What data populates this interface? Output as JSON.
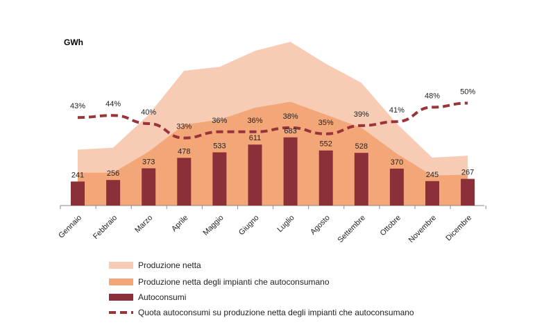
{
  "colors": {
    "produzione_netta": "#f8ccb4",
    "produzione_impianti": "#f3a677",
    "autoconsumi": "#8b3039",
    "quota": "#98343a",
    "axis": "#8a8a8a"
  },
  "chart_data": {
    "type": "bar",
    "unit_label": "GWh",
    "categories": [
      "Gennaio",
      "Febbraio",
      "Marzo",
      "Aprile",
      "Maggio",
      "Giugno",
      "Luglio",
      "Agosto",
      "Settembre",
      "Ottobre",
      "Novembre",
      "Dicembre"
    ],
    "ylim": [
      0,
      1600
    ],
    "y2lim": [
      0,
      80
    ],
    "grid": false,
    "legend_placement": "bottom",
    "series": [
      {
        "name": "Produzione netta",
        "type": "area",
        "values": [
          560,
          580,
          910,
          1350,
          1390,
          1550,
          1640,
          1420,
          1230,
          820,
          480,
          500
        ]
      },
      {
        "name": "Produzione netta degli impianti che autoconsumano",
        "type": "area",
        "values": [
          330,
          330,
          540,
          810,
          860,
          980,
          1040,
          910,
          780,
          520,
          300,
          310
        ]
      },
      {
        "name": "Autoconsumi",
        "type": "bar",
        "values": [
          241,
          256,
          373,
          478,
          533,
          611,
          683,
          552,
          528,
          370,
          245,
          267
        ],
        "labels": [
          "241",
          "256",
          "373",
          "478",
          "533",
          "611",
          "683",
          "552",
          "528",
          "370",
          "245",
          "267"
        ]
      },
      {
        "name": "Quota autoconsumi su produzione netta degli impianti che autoconsumano",
        "type": "line",
        "axis": "secondary",
        "values": [
          43,
          44,
          40,
          33,
          36,
          36,
          38,
          35,
          39,
          41,
          48,
          50
        ],
        "labels": [
          "43%",
          "44%",
          "40%",
          "33%",
          "36%",
          "36%",
          "38%",
          "35%",
          "39%",
          "41%",
          "48%",
          "50%"
        ]
      }
    ]
  }
}
